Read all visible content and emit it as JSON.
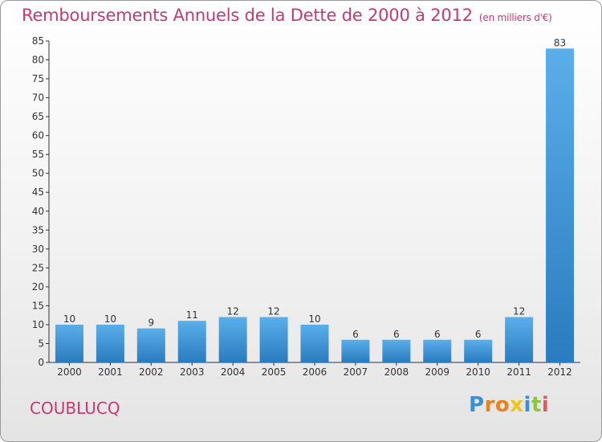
{
  "header": {
    "title": "Remboursements Annuels de la Dette de 2000 à 2012",
    "subtitle": "(en milliers d'€)"
  },
  "footer": {
    "town": "COUBLUCQ",
    "logo_text": "Proxiti"
  },
  "colors": {
    "title": "#c33a73",
    "bar_light": "#5aafea",
    "bar_dark": "#2a7bbf"
  },
  "chart_data": {
    "type": "bar",
    "categories": [
      "2000",
      "2001",
      "2002",
      "2003",
      "2004",
      "2005",
      "2006",
      "2007",
      "2008",
      "2009",
      "2010",
      "2011",
      "2012"
    ],
    "values": [
      10,
      10,
      9,
      11,
      12,
      12,
      10,
      6,
      6,
      6,
      6,
      12,
      83
    ],
    "ylim": [
      0,
      85
    ],
    "yticks": [
      0,
      5,
      10,
      15,
      20,
      25,
      30,
      35,
      40,
      45,
      50,
      55,
      60,
      65,
      70,
      75,
      80,
      85
    ],
    "grid": false,
    "data_labels": true
  }
}
